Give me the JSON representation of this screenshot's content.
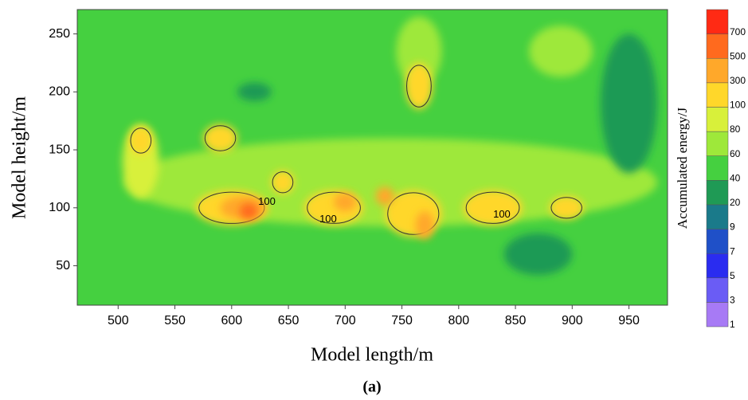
{
  "chart_data": {
    "type": "contour",
    "xlabel": "Model length/m",
    "ylabel": "Model height/m",
    "caption": "(a)",
    "xlim": [
      464,
      984
    ],
    "ylim": [
      16,
      271
    ],
    "xticks": [
      500,
      550,
      600,
      650,
      700,
      750,
      800,
      850,
      900,
      950
    ],
    "yticks": [
      50,
      100,
      150,
      200,
      250
    ],
    "background_level": 40,
    "colorbar": {
      "label": "Accumulated energy/J",
      "levels": [
        1,
        3,
        5,
        7,
        9,
        20,
        40,
        60,
        80,
        100,
        300,
        500,
        700
      ],
      "colors": [
        "#a77af5",
        "#6a5cf5",
        "#2a2cf0",
        "#1f50c8",
        "#1a7a8a",
        "#1f9a55",
        "#45d040",
        "#9ee83a",
        "#d8f03a",
        "#ffd72a",
        "#ffa82a",
        "#ff6a1e",
        "#ff2a14"
      ]
    },
    "hotspots": [
      {
        "x": 740,
        "y": 122,
        "rx": 235,
        "ry": 38,
        "level": 60
      },
      {
        "x": 890,
        "y": 235,
        "rx": 28,
        "ry": 22,
        "level": 60
      },
      {
        "x": 765,
        "y": 235,
        "rx": 20,
        "ry": 30,
        "level": 60
      },
      {
        "x": 520,
        "y": 140,
        "rx": 16,
        "ry": 32,
        "level": 80
      },
      {
        "x": 950,
        "y": 190,
        "rx": 25,
        "ry": 60,
        "level": 20
      },
      {
        "x": 870,
        "y": 60,
        "rx": 30,
        "ry": 18,
        "level": 20
      },
      {
        "x": 620,
        "y": 200,
        "rx": 15,
        "ry": 8,
        "level": 20
      },
      {
        "x": 600,
        "y": 100,
        "rx": 32,
        "ry": 15,
        "level": 100
      },
      {
        "x": 690,
        "y": 100,
        "rx": 26,
        "ry": 15,
        "level": 100
      },
      {
        "x": 760,
        "y": 95,
        "rx": 25,
        "ry": 20,
        "level": 100
      },
      {
        "x": 830,
        "y": 100,
        "rx": 26,
        "ry": 15,
        "level": 100
      },
      {
        "x": 895,
        "y": 100,
        "rx": 15,
        "ry": 10,
        "level": 100
      },
      {
        "x": 765,
        "y": 205,
        "rx": 12,
        "ry": 20,
        "level": 100
      },
      {
        "x": 520,
        "y": 158,
        "rx": 10,
        "ry": 12,
        "level": 100
      },
      {
        "x": 590,
        "y": 160,
        "rx": 15,
        "ry": 12,
        "level": 100
      },
      {
        "x": 645,
        "y": 122,
        "rx": 10,
        "ry": 10,
        "level": 100
      },
      {
        "x": 610,
        "y": 100,
        "rx": 20,
        "ry": 10,
        "level": 300
      },
      {
        "x": 700,
        "y": 105,
        "rx": 10,
        "ry": 8,
        "level": 300
      },
      {
        "x": 735,
        "y": 110,
        "rx": 8,
        "ry": 8,
        "level": 300
      },
      {
        "x": 770,
        "y": 85,
        "rx": 8,
        "ry": 12,
        "level": 300
      },
      {
        "x": 615,
        "y": 97,
        "rx": 8,
        "ry": 7,
        "level": 500
      }
    ],
    "contour_labels": [
      {
        "text": "100",
        "x": 631,
        "y": 105
      },
      {
        "text": "100",
        "x": 685,
        "y": 90
      },
      {
        "text": "100",
        "x": 838,
        "y": 94
      }
    ]
  }
}
